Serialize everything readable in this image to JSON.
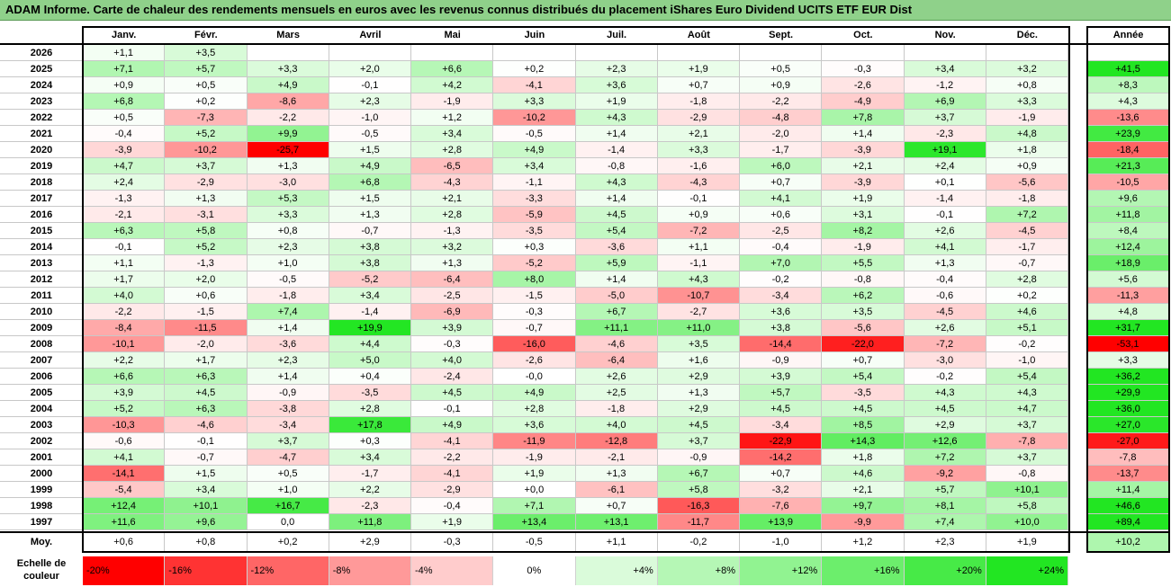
{
  "title": "ADAM Informe. Carte de chaleur des rendements mensuels en euros avec les revenus connus distribués du placement iShares Euro Dividend UCITS ETF EUR Dist",
  "chart_data": {
    "type": "heatmap",
    "columns": [
      "Janv.",
      "Févr.",
      "Mars",
      "Avril",
      "Mai",
      "Juin",
      "Juil.",
      "Août",
      "Sept.",
      "Oct.",
      "Nov.",
      "Déc."
    ],
    "year_column_label": "Année",
    "rows": [
      {
        "year": "2026",
        "months": [
          "+1,1",
          "+3,5",
          "",
          "",
          "",
          "",
          "",
          "",
          "",
          "",
          "",
          ""
        ],
        "annual": ""
      },
      {
        "year": "2025",
        "months": [
          "+7,1",
          "+5,7",
          "+3,3",
          "+2,0",
          "+6,6",
          "+0,2",
          "+2,3",
          "+1,9",
          "+0,5",
          "-0,3",
          "+3,4",
          "+3,2"
        ],
        "annual": "+41,5"
      },
      {
        "year": "2024",
        "months": [
          "+0,9",
          "+0,5",
          "+4,9",
          "-0,1",
          "+4,2",
          "-4,1",
          "+3,6",
          "+0,7",
          "+0,9",
          "-2,6",
          "-1,2",
          "+0,8"
        ],
        "annual": "+8,3"
      },
      {
        "year": "2023",
        "months": [
          "+6,8",
          "+0,2",
          "-8,6",
          "+2,3",
          "-1,9",
          "+3,3",
          "+1,9",
          "-1,8",
          "-2,2",
          "-4,9",
          "+6,9",
          "+3,3"
        ],
        "annual": "+4,3"
      },
      {
        "year": "2022",
        "months": [
          "+0,5",
          "-7,3",
          "-2,2",
          "-1,0",
          "+1,2",
          "-10,2",
          "+4,3",
          "-2,9",
          "-4,8",
          "+7,8",
          "+3,7",
          "-1,9"
        ],
        "annual": "-13,6"
      },
      {
        "year": "2021",
        "months": [
          "-0,4",
          "+5,2",
          "+9,9",
          "-0,5",
          "+3,4",
          "-0,5",
          "+1,4",
          "+2,1",
          "-2,0",
          "+1,4",
          "-2,3",
          "+4,8"
        ],
        "annual": "+23,9"
      },
      {
        "year": "2020",
        "months": [
          "-3,9",
          "-10,2",
          "-25,7",
          "+1,5",
          "+2,8",
          "+4,9",
          "-1,4",
          "+3,3",
          "-1,7",
          "-3,9",
          "+19,1",
          "+1,8"
        ],
        "annual": "-18,4"
      },
      {
        "year": "2019",
        "months": [
          "+4,7",
          "+3,7",
          "+1,3",
          "+4,9",
          "-6,5",
          "+3,4",
          "-0,8",
          "-1,6",
          "+6,0",
          "+2,1",
          "+2,4",
          "+0,9"
        ],
        "annual": "+21,3"
      },
      {
        "year": "2018",
        "months": [
          "+2,4",
          "-2,9",
          "-3,0",
          "+6,8",
          "-4,3",
          "-1,1",
          "+4,3",
          "-4,3",
          "+0,7",
          "-3,9",
          "+0,1",
          "-5,6"
        ],
        "annual": "-10,5"
      },
      {
        "year": "2017",
        "months": [
          "-1,3",
          "+1,3",
          "+5,3",
          "+1,5",
          "+2,1",
          "-3,3",
          "+1,4",
          "-0,1",
          "+4,1",
          "+1,9",
          "-1,4",
          "-1,8"
        ],
        "annual": "+9,6"
      },
      {
        "year": "2016",
        "months": [
          "-2,1",
          "-3,1",
          "+3,3",
          "+1,3",
          "+2,8",
          "-5,9",
          "+4,5",
          "+0,9",
          "+0,6",
          "+3,1",
          "-0,1",
          "+7,2"
        ],
        "annual": "+11,8"
      },
      {
        "year": "2015",
        "months": [
          "+6,3",
          "+5,8",
          "+0,8",
          "-0,7",
          "-1,3",
          "-3,5",
          "+5,4",
          "-7,2",
          "-2,5",
          "+8,2",
          "+2,6",
          "-4,5"
        ],
        "annual": "+8,4"
      },
      {
        "year": "2014",
        "months": [
          "-0,1",
          "+5,2",
          "+2,3",
          "+3,8",
          "+3,2",
          "+0,3",
          "-3,6",
          "+1,1",
          "-0,4",
          "-1,9",
          "+4,1",
          "-1,7"
        ],
        "annual": "+12,4"
      },
      {
        "year": "2013",
        "months": [
          "+1,1",
          "-1,3",
          "+1,0",
          "+3,8",
          "+1,3",
          "-5,2",
          "+5,9",
          "-1,1",
          "+7,0",
          "+5,5",
          "+1,3",
          "-0,7"
        ],
        "annual": "+18,9"
      },
      {
        "year": "2012",
        "months": [
          "+1,7",
          "+2,0",
          "-0,5",
          "-5,2",
          "-6,4",
          "+8,0",
          "+1,4",
          "+4,3",
          "-0,2",
          "-0,8",
          "-0,4",
          "+2,8"
        ],
        "annual": "+5,6"
      },
      {
        "year": "2011",
        "months": [
          "+4,0",
          "+0,6",
          "-1,8",
          "+3,4",
          "-2,5",
          "-1,5",
          "-5,0",
          "-10,7",
          "-3,4",
          "+6,2",
          "-0,6",
          "+0,2"
        ],
        "annual": "-11,3"
      },
      {
        "year": "2010",
        "months": [
          "-2,2",
          "-1,5",
          "+7,4",
          "-1,4",
          "-6,9",
          "-0,3",
          "+6,7",
          "-2,7",
          "+3,6",
          "+3,5",
          "-4,5",
          "+4,6"
        ],
        "annual": "+4,8"
      },
      {
        "year": "2009",
        "months": [
          "-8,4",
          "-11,5",
          "+1,4",
          "+19,9",
          "+3,9",
          "-0,7",
          "+11,1",
          "+11,0",
          "+3,8",
          "-5,6",
          "+2,6",
          "+5,1"
        ],
        "annual": "+31,7"
      },
      {
        "year": "2008",
        "months": [
          "-10,1",
          "-2,0",
          "-3,6",
          "+4,4",
          "-0,3",
          "-16,0",
          "-4,6",
          "+3,5",
          "-14,4",
          "-22,0",
          "-7,2",
          "-0,2"
        ],
        "annual": "-53,1"
      },
      {
        "year": "2007",
        "months": [
          "+2,2",
          "+1,7",
          "+2,3",
          "+5,0",
          "+4,0",
          "-2,6",
          "-6,4",
          "+1,6",
          "-0,9",
          "+0,7",
          "-3,0",
          "-1,0"
        ],
        "annual": "+3,3"
      },
      {
        "year": "2006",
        "months": [
          "+6,6",
          "+6,3",
          "+1,4",
          "+0,4",
          "-2,4",
          "-0,0",
          "+2,6",
          "+2,9",
          "+3,9",
          "+5,4",
          "-0,2",
          "+5,4"
        ],
        "annual": "+36,2"
      },
      {
        "year": "2005",
        "months": [
          "+3,9",
          "+4,5",
          "-0,9",
          "-3,5",
          "+4,5",
          "+4,9",
          "+2,5",
          "+1,3",
          "+5,7",
          "-3,5",
          "+4,3",
          "+4,3"
        ],
        "annual": "+29,9"
      },
      {
        "year": "2004",
        "months": [
          "+5,2",
          "+6,3",
          "-3,8",
          "+2,8",
          "-0,1",
          "+2,8",
          "-1,8",
          "+2,9",
          "+4,5",
          "+4,5",
          "+4,5",
          "+4,7"
        ],
        "annual": "+36,0"
      },
      {
        "year": "2003",
        "months": [
          "-10,3",
          "-4,6",
          "-3,4",
          "+17,8",
          "+4,9",
          "+3,6",
          "+4,0",
          "+4,5",
          "-3,4",
          "+8,5",
          "+2,9",
          "+3,7"
        ],
        "annual": "+27,0"
      },
      {
        "year": "2002",
        "months": [
          "-0,6",
          "-0,1",
          "+3,7",
          "+0,3",
          "-4,1",
          "-11,9",
          "-12,8",
          "+3,7",
          "-22,9",
          "+14,3",
          "+12,6",
          "-7,8"
        ],
        "annual": "-27,0"
      },
      {
        "year": "2001",
        "months": [
          "+4,1",
          "-0,7",
          "-4,7",
          "+3,4",
          "-2,2",
          "-1,9",
          "-2,1",
          "-0,9",
          "-14,2",
          "+1,8",
          "+7,2",
          "+3,7"
        ],
        "annual": "-7,8"
      },
      {
        "year": "2000",
        "months": [
          "-14,1",
          "+1,5",
          "+0,5",
          "-1,7",
          "-4,1",
          "+1,9",
          "+1,3",
          "+6,7",
          "+0,7",
          "+4,6",
          "-9,2",
          "-0,8"
        ],
        "annual": "-13,7"
      },
      {
        "year": "1999",
        "months": [
          "-5,4",
          "+3,4",
          "+1,0",
          "+2,2",
          "-2,9",
          "+0,0",
          "-6,1",
          "+5,8",
          "-3,2",
          "+2,1",
          "+5,7",
          "+10,1"
        ],
        "annual": "+11,4"
      },
      {
        "year": "1998",
        "months": [
          "+12,4",
          "+10,1",
          "+16,7",
          "-2,3",
          "-0,4",
          "+7,1",
          "+0,7",
          "-16,3",
          "-7,6",
          "+9,7",
          "+8,1",
          "+5,8"
        ],
        "annual": "+46,6"
      },
      {
        "year": "1997",
        "months": [
          "+11,6",
          "+9,6",
          "0,0",
          "+11,8",
          "+1,9",
          "+13,4",
          "+13,1",
          "-11,7",
          "+13,9",
          "-9,9",
          "+7,4",
          "+10,0"
        ],
        "annual": "+89,4"
      }
    ],
    "average": {
      "label": "Moy.",
      "months": [
        "+0,6",
        "+0,8",
        "+0,2",
        "+2,9",
        "-0,3",
        "-0,5",
        "+1,1",
        "-0,2",
        "-1,0",
        "+1,2",
        "+2,3",
        "+1,9"
      ],
      "annual": "+10,2"
    },
    "scale": {
      "label": "Echelle de couleur",
      "steps": [
        {
          "label": "-20%",
          "value": -20
        },
        {
          "label": "-16%",
          "value": -16
        },
        {
          "label": "-12%",
          "value": -12
        },
        {
          "label": "-8%",
          "value": -8
        },
        {
          "label": "-4%",
          "value": -4
        },
        {
          "label": "0%",
          "value": 0
        },
        {
          "label": "+4%",
          "value": 4
        },
        {
          "label": "+8%",
          "value": 8
        },
        {
          "label": "+12%",
          "value": 12
        },
        {
          "label": "+16%",
          "value": 16
        },
        {
          "label": "+20%",
          "value": 20
        },
        {
          "label": "+24%",
          "value": 24
        }
      ]
    },
    "colors": {
      "negative": "#ff0000",
      "zero": "#ffffff",
      "positive": "#22e622",
      "title_bar": "#8fd18a"
    }
  }
}
